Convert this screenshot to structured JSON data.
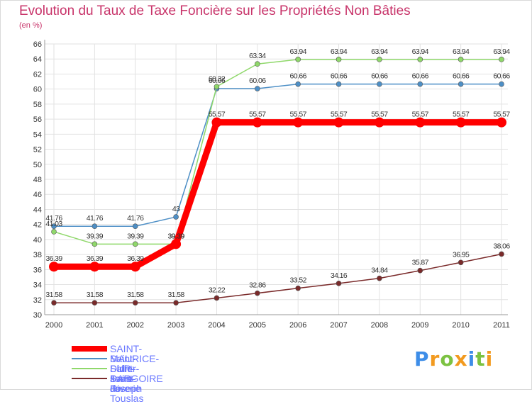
{
  "title": "Evolution du Taux de Taxe Foncière sur les Propriétés Non Bâties",
  "unit": "(en %)",
  "logo": {
    "letters": [
      "P",
      "r",
      "o",
      "x",
      "i",
      "t",
      "i"
    ],
    "colors": [
      "#3d8de8",
      "#f29a1f",
      "#7cc242",
      "#f29a1f",
      "#3d8de8",
      "#7cc242",
      "#f29a1f"
    ]
  },
  "chart_data": {
    "type": "line",
    "title": "Evolution du Taux de Taxe Foncière sur les Propriétés Non Bâties",
    "ylabel": "(en %)",
    "xlabel": "",
    "ylim": [
      30,
      66
    ],
    "yticks": [
      30,
      32,
      34,
      36,
      38,
      40,
      42,
      44,
      46,
      48,
      50,
      52,
      54,
      56,
      58,
      60,
      62,
      64,
      66
    ],
    "grid": true,
    "categories": [
      "2000",
      "2001",
      "2002",
      "2003",
      "2004",
      "2005",
      "2006",
      "2007",
      "2008",
      "2009",
      "2010",
      "2011"
    ],
    "series": [
      {
        "name": "Saint-Didier-sous-Riverie",
        "color": "#4d8fc6",
        "values": [
          41.76,
          41.76,
          41.76,
          43,
          60.06,
          60.06,
          60.66,
          60.66,
          60.66,
          60.66,
          60.66,
          60.66
        ],
        "labels": [
          "41.76",
          "41.76",
          "41.76",
          "43",
          "60.06",
          "60.06",
          "60.66",
          "60.66",
          "60.66",
          "60.66",
          "60.66",
          "60.66"
        ]
      },
      {
        "name": "Saint-Jean-de-Touslas",
        "color": "#8fd86a",
        "values": [
          41.03,
          39.39,
          39.39,
          39.39,
          60.32,
          63.34,
          63.94,
          63.94,
          63.94,
          63.94,
          63.94,
          63.94
        ],
        "labels": [
          "41.03",
          "39.39",
          "39.39",
          "39.39",
          "60.32",
          "63.34",
          "63.94",
          "63.94",
          "63.94",
          "63.94",
          "63.94",
          "63.94"
        ]
      },
      {
        "name": "Saint-Joseph",
        "color": "#7a2a2a",
        "values": [
          31.58,
          31.58,
          31.58,
          31.58,
          32.22,
          32.86,
          33.52,
          34.16,
          34.84,
          35.87,
          36.95,
          38.06
        ],
        "labels": [
          "31.58",
          "31.58",
          "31.58",
          "31.58",
          "32.22",
          "32.86",
          "33.52",
          "34.16",
          "34.84",
          "35.87",
          "36.95",
          "38.06"
        ]
      },
      {
        "name": "SAINT-MAURICE-SUR-DARGOIRE",
        "color": "#ff0000",
        "highlight": true,
        "values": [
          36.39,
          36.39,
          36.39,
          39.39,
          55.57,
          55.57,
          55.57,
          55.57,
          55.57,
          55.57,
          55.57,
          55.57
        ],
        "labels": [
          "36.39",
          "36.39",
          "36.39",
          "39.39",
          "55.57",
          "55.57",
          "55.57",
          "55.57",
          "55.57",
          "55.57",
          "55.57",
          "55.57"
        ]
      }
    ],
    "legend": [
      {
        "name": "SAINT-MAURICE-SUR-DARGOIRE",
        "color": "#ff0000",
        "thick": true
      },
      {
        "name": "Saint-Didier-sous-Riverie",
        "color": "#4d8fc6",
        "thick": false
      },
      {
        "name": "Saint-Jean-de-Touslas",
        "color": "#8fd86a",
        "thick": false
      },
      {
        "name": "Saint-Joseph",
        "color": "#7a2a2a",
        "thick": false
      }
    ]
  }
}
